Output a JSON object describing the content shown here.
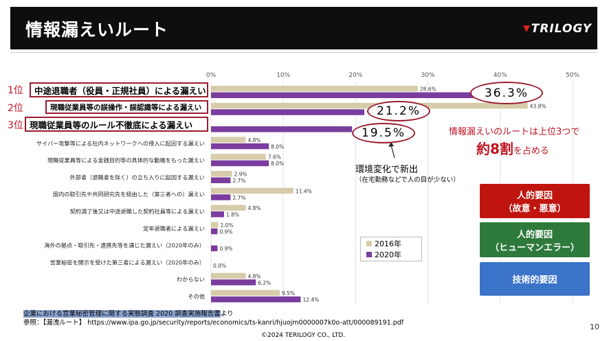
{
  "header": {
    "title": "情報漏えいルート",
    "logo_text": "TRILOGY"
  },
  "ranks": [
    {
      "label": "1位",
      "box_text": "中途退職者（役員・正規社員）による漏えい",
      "oval_text": "36.3%"
    },
    {
      "label": "2位",
      "box_text": "現職従業員等の誤操作・誤認識等による漏えい",
      "oval_text": "21.2%"
    },
    {
      "label": "3位",
      "box_text": "現職従業員等のルール不徹底による漏えい",
      "oval_text": "19.5%"
    }
  ],
  "chart_data": {
    "type": "bar",
    "orientation": "horizontal",
    "xlim": [
      0,
      50
    ],
    "x_ticks": [
      "0%",
      "10%",
      "20%",
      "30%",
      "40%",
      "50%"
    ],
    "categories": [
      "中途退職者（役員・正規社員）による漏えい",
      "現職従業員等の誤操作・誤認識等による漏えい",
      "現職従業員等のルール不徹底による漏えい",
      "サイバー攻撃等による社内ネットワークへの侵入に起因する漏えい",
      "現職従業員等による金銭目的等の具体的な動機をもった漏えい",
      "外部者（退職者を除く）の立ち入りに起因する漏えい",
      "国内の取引先や共同研究先を経由した（第三者への）漏えい",
      "契約満了後又は中途退職した契約社員等による漏えい",
      "定年退職者による漏えい",
      "海外の拠点・取引先・連携先等を通じた漏えい（2020年のみ）",
      "営業秘密を開示を受けた第三者による漏えい（2020年のみ）",
      "わからない",
      "その他"
    ],
    "series": [
      {
        "name": "2016年",
        "color": "#d6ccaa",
        "values": [
          28.6,
          43.8,
          null,
          4.8,
          7.6,
          2.9,
          11.4,
          4.8,
          1.0,
          null,
          null,
          4.8,
          9.5
        ],
        "labels": [
          "28.6%",
          "43.8%",
          "",
          "4.8%",
          "7.6%",
          "2.9%",
          "11.4%",
          "4.8%",
          "1.0%",
          "",
          "",
          "4.8%",
          "9.5%"
        ]
      },
      {
        "name": "2020年",
        "color": "#7a3d9e",
        "values": [
          36.3,
          21.2,
          19.5,
          8.0,
          8.0,
          2.7,
          2.7,
          1.8,
          0.9,
          0.9,
          0.0,
          6.2,
          12.4
        ],
        "labels": [
          "",
          "",
          "",
          "8.0%",
          "8.0%",
          "2.7%",
          "2.7%",
          "1.8%",
          "0.9%",
          "0.9%",
          "0.0%",
          "6.2%",
          "12.4%"
        ]
      }
    ],
    "legend_position": "bottom-right"
  },
  "callout": {
    "main": "環境変化で新出",
    "sub": "（在宅勤務などで人の目が少ない）"
  },
  "summary": {
    "line1": "情報漏えいのルートは上位3つで",
    "line2_big": "約8割",
    "line2_rest": "を占める"
  },
  "buttons": [
    {
      "line1": "人的要因",
      "line2": "（故意・悪意）",
      "color": "#c0140f"
    },
    {
      "line1": "人的要因",
      "line2": "（ヒューマンエラー）",
      "color": "#2e7a3c"
    },
    {
      "line1": "技術的要因",
      "line2": "",
      "color": "#3b73c9"
    }
  ],
  "footer": {
    "source": "企業における営業秘密管理に関する実態調査 2020 調査実施報告書",
    "source_suffix": "より",
    "reference": "参照：【漏洩ルート】 https://www.ipa.go.jp/security/reports/economics/ts-kanri/hjuojm0000007k0o-att/000089191.pdf",
    "copyright": "©2024 TERILOGY CO., LTD.",
    "page_number": "10"
  }
}
